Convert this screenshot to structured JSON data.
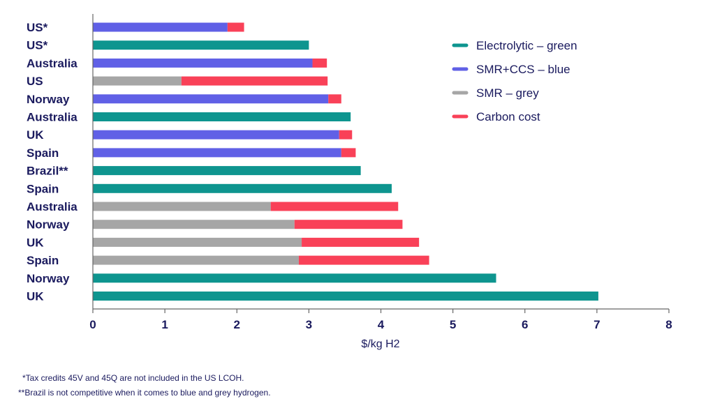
{
  "chart_data": {
    "type": "bar",
    "orientation": "horizontal",
    "stacked": true,
    "categories": [
      "US*",
      "US*",
      "Australia",
      "US",
      "Norway",
      "Australia",
      "UK",
      "Spain",
      "Brazil**",
      "Spain",
      "Australia",
      "Norway",
      "UK",
      "Spain",
      "Norway",
      "UK"
    ],
    "series": [
      {
        "name": "Electrolytic – green",
        "color": "#0e958f",
        "values": [
          0,
          3.0,
          0,
          0,
          0,
          3.58,
          0,
          0,
          3.72,
          4.15,
          0,
          0,
          0,
          0,
          5.6,
          7.02
        ]
      },
      {
        "name": "SMR+CCS – blue",
        "color": "#6060e6",
        "values": [
          1.87,
          0,
          3.05,
          0,
          3.27,
          0,
          3.42,
          3.45,
          0,
          0,
          0,
          0,
          0,
          0,
          0,
          0
        ]
      },
      {
        "name": "SMR – grey",
        "color": "#a6a6a6",
        "values": [
          0,
          0,
          0,
          1.23,
          0,
          0,
          0,
          0,
          0,
          0,
          2.47,
          2.8,
          2.9,
          2.86,
          0,
          0
        ]
      },
      {
        "name": "Carbon cost",
        "color": "#f94158",
        "values": [
          0.23,
          0,
          0.2,
          2.03,
          0.18,
          0,
          0.18,
          0.2,
          0,
          0,
          1.77,
          1.5,
          1.63,
          1.81,
          0,
          0
        ]
      }
    ],
    "xlabel": "$/kg H2",
    "xlim": [
      0,
      8
    ],
    "xticks": [
      0,
      1,
      2,
      3,
      4,
      5,
      6,
      7,
      8
    ],
    "grid": false,
    "legend": "top-right"
  },
  "footnotes": [
    "*Tax credits 45V and 45Q are not included in the US LCOH.",
    "**Brazil is not competitive when it comes to blue and grey hydrogen."
  ]
}
